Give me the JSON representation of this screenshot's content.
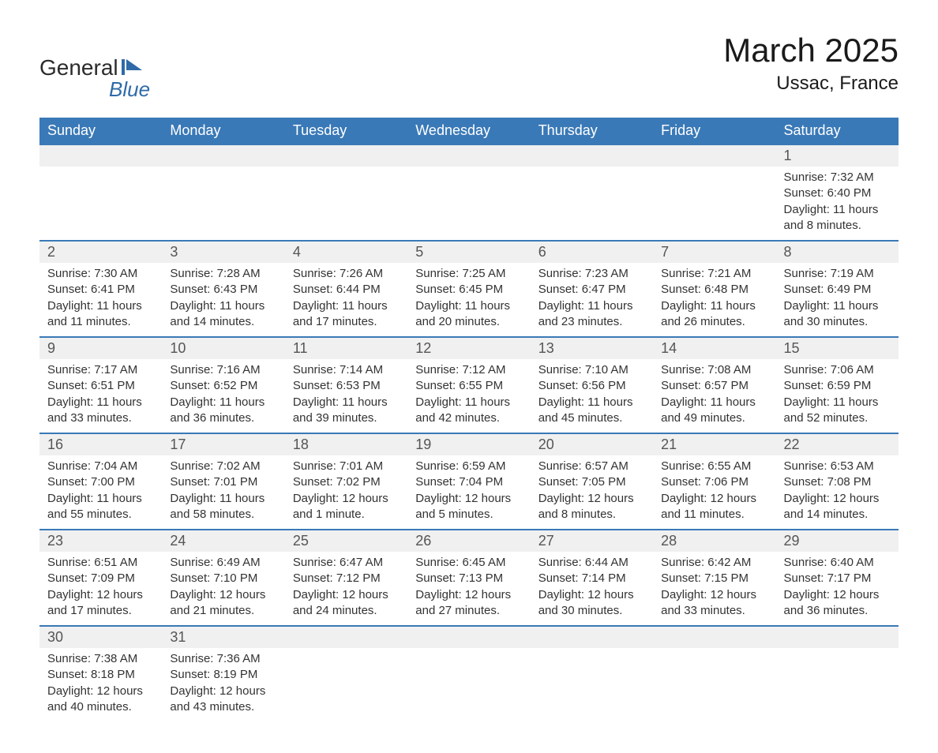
{
  "logo": {
    "part1": "General",
    "part2": "Blue"
  },
  "title": "March 2025",
  "location": "Ussac, France",
  "colors": {
    "header_bg": "#3a79b7",
    "header_text": "#ffffff",
    "daynum_bg": "#f0f0f0",
    "row_border": "#3a79b7",
    "text": "#333333",
    "logo_blue": "#2f6aa8"
  },
  "day_labels": [
    "Sunday",
    "Monday",
    "Tuesday",
    "Wednesday",
    "Thursday",
    "Friday",
    "Saturday"
  ],
  "weeks": [
    [
      null,
      null,
      null,
      null,
      null,
      null,
      {
        "n": "1",
        "sunrise": "Sunrise: 7:32 AM",
        "sunset": "Sunset: 6:40 PM",
        "daylight": "Daylight: 11 hours and 8 minutes."
      }
    ],
    [
      {
        "n": "2",
        "sunrise": "Sunrise: 7:30 AM",
        "sunset": "Sunset: 6:41 PM",
        "daylight": "Daylight: 11 hours and 11 minutes."
      },
      {
        "n": "3",
        "sunrise": "Sunrise: 7:28 AM",
        "sunset": "Sunset: 6:43 PM",
        "daylight": "Daylight: 11 hours and 14 minutes."
      },
      {
        "n": "4",
        "sunrise": "Sunrise: 7:26 AM",
        "sunset": "Sunset: 6:44 PM",
        "daylight": "Daylight: 11 hours and 17 minutes."
      },
      {
        "n": "5",
        "sunrise": "Sunrise: 7:25 AM",
        "sunset": "Sunset: 6:45 PM",
        "daylight": "Daylight: 11 hours and 20 minutes."
      },
      {
        "n": "6",
        "sunrise": "Sunrise: 7:23 AM",
        "sunset": "Sunset: 6:47 PM",
        "daylight": "Daylight: 11 hours and 23 minutes."
      },
      {
        "n": "7",
        "sunrise": "Sunrise: 7:21 AM",
        "sunset": "Sunset: 6:48 PM",
        "daylight": "Daylight: 11 hours and 26 minutes."
      },
      {
        "n": "8",
        "sunrise": "Sunrise: 7:19 AM",
        "sunset": "Sunset: 6:49 PM",
        "daylight": "Daylight: 11 hours and 30 minutes."
      }
    ],
    [
      {
        "n": "9",
        "sunrise": "Sunrise: 7:17 AM",
        "sunset": "Sunset: 6:51 PM",
        "daylight": "Daylight: 11 hours and 33 minutes."
      },
      {
        "n": "10",
        "sunrise": "Sunrise: 7:16 AM",
        "sunset": "Sunset: 6:52 PM",
        "daylight": "Daylight: 11 hours and 36 minutes."
      },
      {
        "n": "11",
        "sunrise": "Sunrise: 7:14 AM",
        "sunset": "Sunset: 6:53 PM",
        "daylight": "Daylight: 11 hours and 39 minutes."
      },
      {
        "n": "12",
        "sunrise": "Sunrise: 7:12 AM",
        "sunset": "Sunset: 6:55 PM",
        "daylight": "Daylight: 11 hours and 42 minutes."
      },
      {
        "n": "13",
        "sunrise": "Sunrise: 7:10 AM",
        "sunset": "Sunset: 6:56 PM",
        "daylight": "Daylight: 11 hours and 45 minutes."
      },
      {
        "n": "14",
        "sunrise": "Sunrise: 7:08 AM",
        "sunset": "Sunset: 6:57 PM",
        "daylight": "Daylight: 11 hours and 49 minutes."
      },
      {
        "n": "15",
        "sunrise": "Sunrise: 7:06 AM",
        "sunset": "Sunset: 6:59 PM",
        "daylight": "Daylight: 11 hours and 52 minutes."
      }
    ],
    [
      {
        "n": "16",
        "sunrise": "Sunrise: 7:04 AM",
        "sunset": "Sunset: 7:00 PM",
        "daylight": "Daylight: 11 hours and 55 minutes."
      },
      {
        "n": "17",
        "sunrise": "Sunrise: 7:02 AM",
        "sunset": "Sunset: 7:01 PM",
        "daylight": "Daylight: 11 hours and 58 minutes."
      },
      {
        "n": "18",
        "sunrise": "Sunrise: 7:01 AM",
        "sunset": "Sunset: 7:02 PM",
        "daylight": "Daylight: 12 hours and 1 minute."
      },
      {
        "n": "19",
        "sunrise": "Sunrise: 6:59 AM",
        "sunset": "Sunset: 7:04 PM",
        "daylight": "Daylight: 12 hours and 5 minutes."
      },
      {
        "n": "20",
        "sunrise": "Sunrise: 6:57 AM",
        "sunset": "Sunset: 7:05 PM",
        "daylight": "Daylight: 12 hours and 8 minutes."
      },
      {
        "n": "21",
        "sunrise": "Sunrise: 6:55 AM",
        "sunset": "Sunset: 7:06 PM",
        "daylight": "Daylight: 12 hours and 11 minutes."
      },
      {
        "n": "22",
        "sunrise": "Sunrise: 6:53 AM",
        "sunset": "Sunset: 7:08 PM",
        "daylight": "Daylight: 12 hours and 14 minutes."
      }
    ],
    [
      {
        "n": "23",
        "sunrise": "Sunrise: 6:51 AM",
        "sunset": "Sunset: 7:09 PM",
        "daylight": "Daylight: 12 hours and 17 minutes."
      },
      {
        "n": "24",
        "sunrise": "Sunrise: 6:49 AM",
        "sunset": "Sunset: 7:10 PM",
        "daylight": "Daylight: 12 hours and 21 minutes."
      },
      {
        "n": "25",
        "sunrise": "Sunrise: 6:47 AM",
        "sunset": "Sunset: 7:12 PM",
        "daylight": "Daylight: 12 hours and 24 minutes."
      },
      {
        "n": "26",
        "sunrise": "Sunrise: 6:45 AM",
        "sunset": "Sunset: 7:13 PM",
        "daylight": "Daylight: 12 hours and 27 minutes."
      },
      {
        "n": "27",
        "sunrise": "Sunrise: 6:44 AM",
        "sunset": "Sunset: 7:14 PM",
        "daylight": "Daylight: 12 hours and 30 minutes."
      },
      {
        "n": "28",
        "sunrise": "Sunrise: 6:42 AM",
        "sunset": "Sunset: 7:15 PM",
        "daylight": "Daylight: 12 hours and 33 minutes."
      },
      {
        "n": "29",
        "sunrise": "Sunrise: 6:40 AM",
        "sunset": "Sunset: 7:17 PM",
        "daylight": "Daylight: 12 hours and 36 minutes."
      }
    ],
    [
      {
        "n": "30",
        "sunrise": "Sunrise: 7:38 AM",
        "sunset": "Sunset: 8:18 PM",
        "daylight": "Daylight: 12 hours and 40 minutes."
      },
      {
        "n": "31",
        "sunrise": "Sunrise: 7:36 AM",
        "sunset": "Sunset: 8:19 PM",
        "daylight": "Daylight: 12 hours and 43 minutes."
      },
      null,
      null,
      null,
      null,
      null
    ]
  ]
}
